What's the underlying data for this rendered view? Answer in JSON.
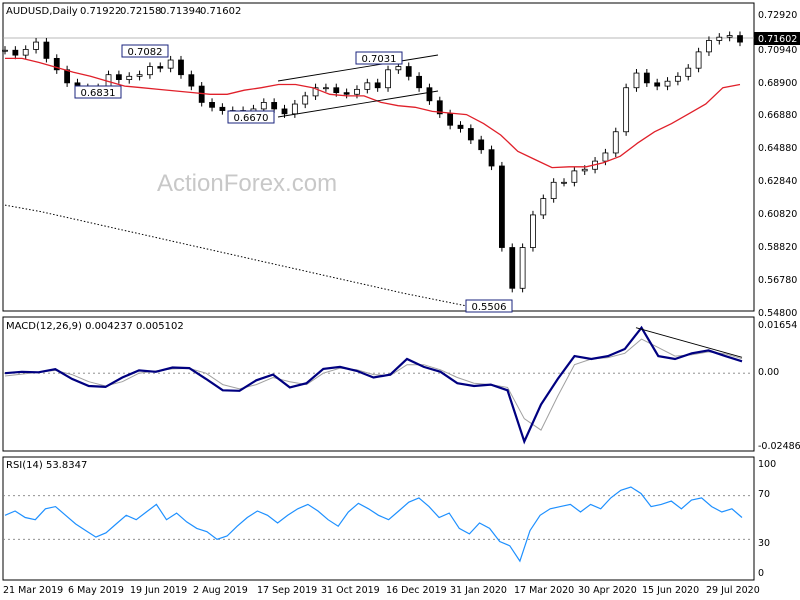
{
  "chart_data": [
    {
      "type": "candlestick",
      "title": "AUDUSD,Daily",
      "ohlc_readout": {
        "open": "0.71922",
        "high": "0.72158",
        "low": "0.71394",
        "close": "0.71602"
      },
      "last_price_label": "0.71602",
      "ylim": [
        0.548,
        0.732
      ],
      "yticks": [
        "0.72920",
        "0.70940",
        "0.68900",
        "0.66880",
        "0.64880",
        "0.62840",
        "0.60820",
        "0.58820",
        "0.56780",
        "0.54800"
      ],
      "x_labels": [
        "21 Mar 2019",
        "6 May 2019",
        "19 Jun 2019",
        "2 Aug 2019",
        "17 Sep 2019",
        "31 Oct 2019",
        "16 Dec 2019",
        "31 Jan 2020",
        "17 Mar 2020",
        "30 Apr 2020",
        "15 Jun 2020",
        "29 Jul 2020"
      ],
      "close_series": {
        "color": "#000000",
        "values": [
          0.711,
          0.708,
          0.7115,
          0.716,
          0.706,
          0.699,
          0.691,
          0.688,
          0.684,
          0.688,
          0.696,
          0.693,
          0.695,
          0.696,
          0.701,
          0.7,
          0.705,
          0.696,
          0.689,
          0.679,
          0.676,
          0.674,
          0.674,
          0.67,
          0.675,
          0.679,
          0.675,
          0.672,
          0.678,
          0.683,
          0.688,
          0.688,
          0.685,
          0.684,
          0.687,
          0.691,
          0.688,
          0.699,
          0.701,
          0.695,
          0.688,
          0.68,
          0.672,
          0.665,
          0.663,
          0.656,
          0.65,
          0.64,
          0.59,
          0.565,
          0.59,
          0.61,
          0.62,
          0.63,
          0.63,
          0.637,
          0.638,
          0.643,
          0.648,
          0.661,
          0.688,
          0.697,
          0.691,
          0.689,
          0.692,
          0.695,
          0.7,
          0.71,
          0.717,
          0.719,
          0.72,
          0.716
        ]
      },
      "ma_series": {
        "color": "#e0202a",
        "values": [
          0.706,
          0.706,
          0.7035,
          0.7005,
          0.6975,
          0.695,
          0.692,
          0.689,
          0.688,
          0.687,
          0.686,
          0.685,
          0.684,
          0.684,
          0.6865,
          0.688,
          0.69,
          0.69,
          0.688,
          0.684,
          0.683,
          0.683,
          0.679,
          0.677,
          0.676,
          0.6735,
          0.6725,
          0.6715,
          0.666,
          0.659,
          0.649,
          0.644,
          0.639,
          0.6395,
          0.6395,
          0.642,
          0.646,
          0.654,
          0.661,
          0.666,
          0.672,
          0.678,
          0.688,
          0.69
        ]
      },
      "long_ma_series": {
        "color": "#000000",
        "style": "dotted",
        "values": [
          0.616,
          0.612,
          0.607,
          0.602,
          0.597,
          0.592,
          0.587,
          0.582,
          0.577,
          0.572,
          0.567,
          0.562,
          0.5575,
          0.553,
          0.551
        ]
      },
      "annotations": [
        "0.7082",
        "0.6831",
        "0.6670",
        "0.7031",
        "0.5506"
      ],
      "watermark": "ActionForex.com"
    },
    {
      "type": "line",
      "title": "MACD(12,26,9) 0.004237 0.005102",
      "ylim": [
        -0.027,
        0.018
      ],
      "yticks": [
        "0.01654",
        "0.00",
        "-0.02486"
      ],
      "series": [
        {
          "color": "#000080",
          "values": [
            0.0,
            0.0005,
            0.0003,
            0.0014,
            -0.002,
            -0.0045,
            -0.0048,
            -0.0015,
            0.001,
            0.0005,
            0.002,
            0.0018,
            -0.002,
            -0.006,
            -0.0062,
            -0.0025,
            -0.0005,
            -0.005,
            -0.0035,
            0.0015,
            0.0022,
            0.0008,
            -0.0015,
            -0.0005,
            0.005,
            0.0022,
            0.0005,
            -0.0035,
            -0.0045,
            -0.004,
            -0.006,
            -0.024,
            -0.011,
            -0.002,
            0.006,
            0.005,
            0.006,
            0.0085,
            0.016,
            0.006,
            0.005,
            0.007,
            0.008,
            0.006,
            0.0042
          ]
        },
        {
          "color": "#a0a0a0",
          "values": [
            -0.001,
            -0.0003,
            0.0003,
            0.001,
            -0.0005,
            -0.003,
            -0.0045,
            -0.003,
            0.0,
            0.0008,
            0.0015,
            0.0017,
            0.0,
            -0.004,
            -0.0055,
            -0.004,
            -0.0015,
            -0.003,
            -0.004,
            0.0,
            0.0018,
            0.0012,
            -0.0005,
            -0.0008,
            0.003,
            0.003,
            0.0012,
            -0.0015,
            -0.0035,
            -0.004,
            -0.005,
            -0.016,
            -0.02,
            -0.008,
            0.003,
            0.005,
            0.0055,
            0.007,
            0.012,
            0.009,
            0.006,
            0.0065,
            0.0075,
            0.0068,
            0.0051
          ]
        }
      ],
      "trendline": [
        0.016,
        0.0056
      ],
      "zero_line": 0
    },
    {
      "type": "line",
      "title": "RSI(14) 53.8347",
      "ylim": [
        0,
        100
      ],
      "yticks": [
        "100",
        "70",
        "30",
        "0"
      ],
      "levels": [
        70,
        30
      ],
      "series": [
        {
          "color": "#1e90ff",
          "values": [
            52,
            56,
            50,
            48,
            58,
            60,
            52,
            44,
            38,
            32,
            36,
            44,
            52,
            48,
            55,
            62,
            48,
            54,
            46,
            40,
            37,
            30,
            33,
            42,
            50,
            56,
            52,
            45,
            52,
            58,
            62,
            56,
            48,
            42,
            55,
            63,
            58,
            52,
            48,
            56,
            64,
            68,
            60,
            50,
            54,
            40,
            35,
            45,
            40,
            28,
            24,
            10,
            38,
            52,
            58,
            60,
            62,
            55,
            62,
            58,
            68,
            75,
            78,
            72,
            60,
            62,
            65,
            58,
            66,
            68,
            60,
            55,
            58,
            50
          ]
        }
      ]
    }
  ]
}
